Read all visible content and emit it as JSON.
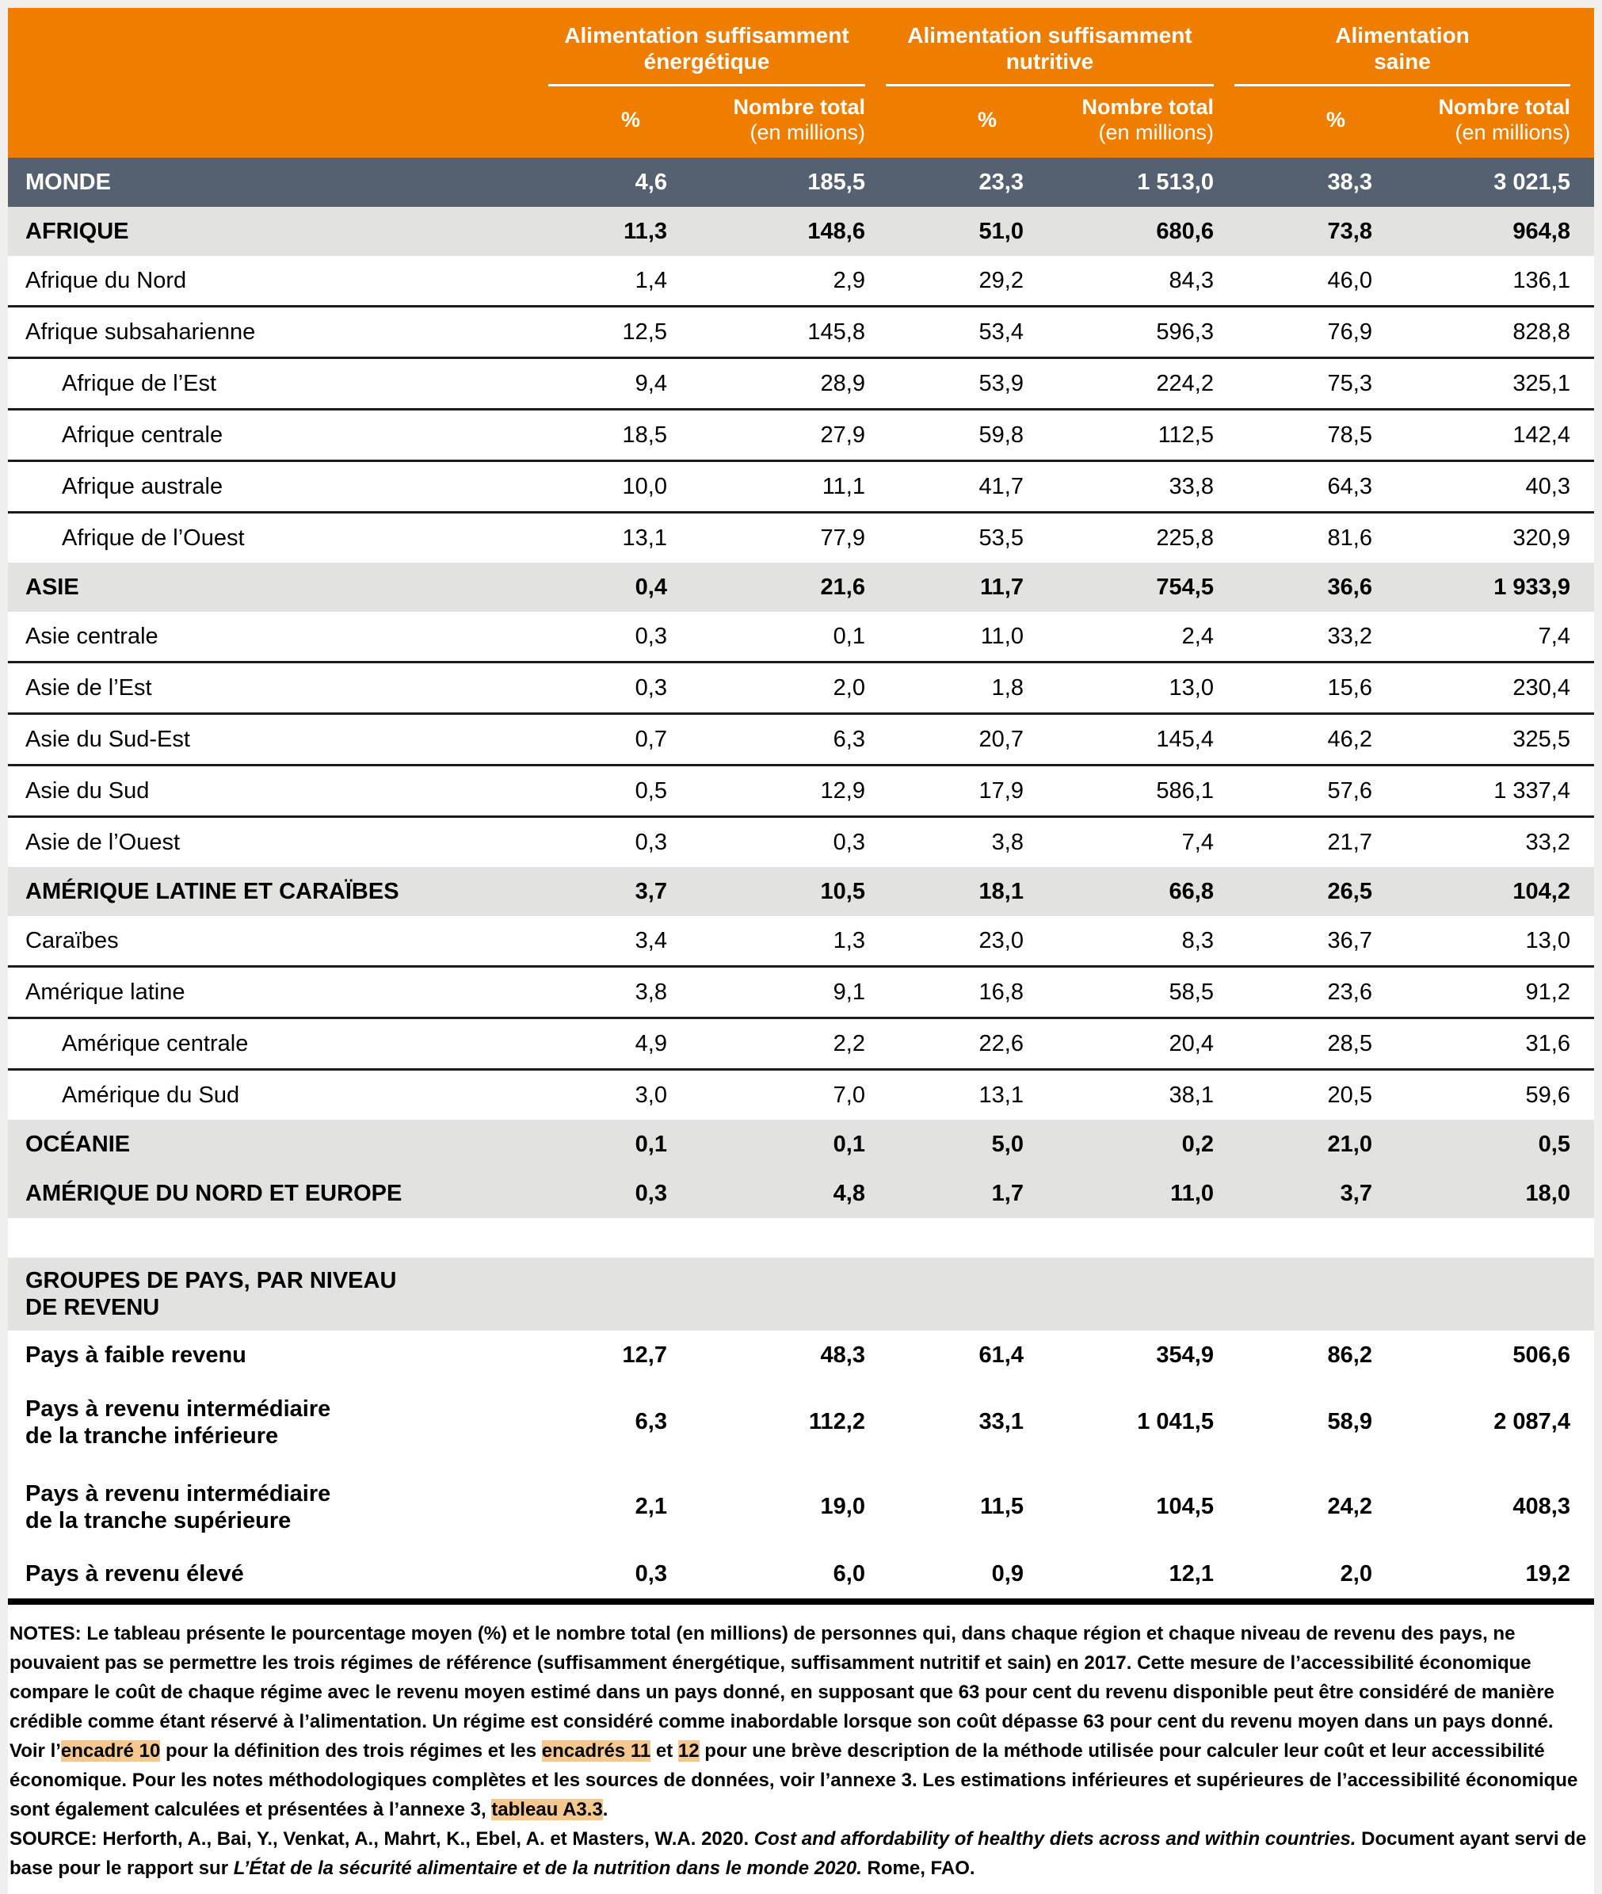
{
  "table": {
    "column_groups": [
      {
        "title": "Alimentation suffisamment\nénergétique"
      },
      {
        "title": "Alimentation suffisamment\nnutritive"
      },
      {
        "title": "Alimentation\nsaine"
      }
    ],
    "sub_headers": {
      "percent": "%",
      "total_line1": "Nombre total",
      "total_line2": "(en millions)"
    },
    "rows": [
      {
        "label": "MONDE",
        "style": "world",
        "indent": 0,
        "sep": false,
        "values": [
          "4,6",
          "185,5",
          "23,3",
          "1 513,0",
          "38,3",
          "3 021,5"
        ]
      },
      {
        "label": "AFRIQUE",
        "style": "region",
        "indent": 0,
        "sep": false,
        "values": [
          "11,3",
          "148,6",
          "51,0",
          "680,6",
          "73,8",
          "964,8"
        ]
      },
      {
        "label": "Afrique du Nord",
        "style": "data",
        "indent": 0,
        "sep": true,
        "values": [
          "1,4",
          "2,9",
          "29,2",
          "84,3",
          "46,0",
          "136,1"
        ]
      },
      {
        "label": "Afrique subsaharienne",
        "style": "data",
        "indent": 0,
        "sep": true,
        "values": [
          "12,5",
          "145,8",
          "53,4",
          "596,3",
          "76,9",
          "828,8"
        ]
      },
      {
        "label": "Afrique de l’Est",
        "style": "data",
        "indent": 1,
        "sep": true,
        "values": [
          "9,4",
          "28,9",
          "53,9",
          "224,2",
          "75,3",
          "325,1"
        ]
      },
      {
        "label": "Afrique centrale",
        "style": "data",
        "indent": 1,
        "sep": true,
        "values": [
          "18,5",
          "27,9",
          "59,8",
          "112,5",
          "78,5",
          "142,4"
        ]
      },
      {
        "label": "Afrique australe",
        "style": "data",
        "indent": 1,
        "sep": true,
        "values": [
          "10,0",
          "11,1",
          "41,7",
          "33,8",
          "64,3",
          "40,3"
        ]
      },
      {
        "label": "Afrique de l’Ouest",
        "style": "data",
        "indent": 1,
        "sep": false,
        "values": [
          "13,1",
          "77,9",
          "53,5",
          "225,8",
          "81,6",
          "320,9"
        ]
      },
      {
        "label": "ASIE",
        "style": "region",
        "indent": 0,
        "sep": false,
        "values": [
          "0,4",
          "21,6",
          "11,7",
          "754,5",
          "36,6",
          "1 933,9"
        ]
      },
      {
        "label": "Asie centrale",
        "style": "data",
        "indent": 0,
        "sep": true,
        "values": [
          "0,3",
          "0,1",
          "11,0",
          "2,4",
          "33,2",
          "7,4"
        ]
      },
      {
        "label": "Asie de l’Est",
        "style": "data",
        "indent": 0,
        "sep": true,
        "values": [
          "0,3",
          "2,0",
          "1,8",
          "13,0",
          "15,6",
          "230,4"
        ]
      },
      {
        "label": "Asie du Sud-Est",
        "style": "data",
        "indent": 0,
        "sep": true,
        "values": [
          "0,7",
          "6,3",
          "20,7",
          "145,4",
          "46,2",
          "325,5"
        ]
      },
      {
        "label": "Asie du Sud",
        "style": "data",
        "indent": 0,
        "sep": true,
        "values": [
          "0,5",
          "12,9",
          "17,9",
          "586,1",
          "57,6",
          "1 337,4"
        ]
      },
      {
        "label": "Asie de l’Ouest",
        "style": "data",
        "indent": 0,
        "sep": false,
        "values": [
          "0,3",
          "0,3",
          "3,8",
          "7,4",
          "21,7",
          "33,2"
        ]
      },
      {
        "label": "AMÉRIQUE LATINE ET CARAÏBES",
        "style": "region",
        "indent": 0,
        "sep": false,
        "values": [
          "3,7",
          "10,5",
          "18,1",
          "66,8",
          "26,5",
          "104,2"
        ]
      },
      {
        "label": "Caraïbes",
        "style": "data",
        "indent": 0,
        "sep": true,
        "values": [
          "3,4",
          "1,3",
          "23,0",
          "8,3",
          "36,7",
          "13,0"
        ]
      },
      {
        "label": "Amérique latine",
        "style": "data",
        "indent": 0,
        "sep": true,
        "values": [
          "3,8",
          "9,1",
          "16,8",
          "58,5",
          "23,6",
          "91,2"
        ]
      },
      {
        "label": "Amérique centrale",
        "style": "data",
        "indent": 1,
        "sep": true,
        "values": [
          "4,9",
          "2,2",
          "22,6",
          "20,4",
          "28,5",
          "31,6"
        ]
      },
      {
        "label": "Amérique du Sud",
        "style": "data",
        "indent": 1,
        "sep": false,
        "values": [
          "3,0",
          "7,0",
          "13,1",
          "38,1",
          "20,5",
          "59,6"
        ]
      },
      {
        "label": "OCÉANIE",
        "style": "region",
        "indent": 0,
        "sep": false,
        "values": [
          "0,1",
          "0,1",
          "5,0",
          "0,2",
          "21,0",
          "0,5"
        ]
      },
      {
        "label": "AMÉRIQUE DU NORD ET EUROPE",
        "style": "region",
        "indent": 0,
        "sep": false,
        "values": [
          "0,3",
          "4,8",
          "1,7",
          "11,0",
          "3,7",
          "18,0"
        ]
      },
      {
        "label": "GROUPES DE PAYS, PAR NIVEAU\nDE REVENU",
        "style": "section",
        "indent": 0,
        "sep": false,
        "values": null
      },
      {
        "label": "Pays à faible revenu",
        "style": "data bold",
        "indent": 0,
        "sep": false,
        "values": [
          "12,7",
          "48,3",
          "61,4",
          "354,9",
          "86,2",
          "506,6"
        ]
      },
      {
        "label": "Pays à revenu intermédiaire\nde la tranche inférieure",
        "style": "data bold tall",
        "indent": 0,
        "sep": false,
        "values": [
          "6,3",
          "112,2",
          "33,1",
          "1 041,5",
          "58,9",
          "2 087,4"
        ]
      },
      {
        "label": "Pays à revenu intermédiaire\nde la tranche supérieure",
        "style": "data bold tall",
        "indent": 0,
        "sep": false,
        "values": [
          "2,1",
          "19,0",
          "11,5",
          "104,5",
          "24,2",
          "408,3"
        ]
      },
      {
        "label": "Pays à revenu élevé",
        "style": "data bold",
        "indent": 0,
        "sep": false,
        "values": [
          "0,3",
          "6,0",
          "0,9",
          "12,1",
          "2,0",
          "19,2"
        ]
      }
    ]
  },
  "notes": {
    "segments": [
      {
        "text": "NOTES: Le tableau présente le pourcentage moyen (%) et le nombre total (en millions) de personnes qui, dans chaque région et chaque niveau de revenu des pays, ne pouvaient pas se permettre les trois régimes de référence (suffisamment énergétique, suffisamment nutritif et sain) en 2017. Cette mesure de l’accessibilité économique compare le coût de chaque régime avec le revenu moyen estimé dans un pays donné, en supposant que 63 pour cent du revenu disponible peut être considéré de manière crédible comme étant réservé à l’alimentation. Un régime est considéré comme inabordable lorsque son coût dépasse 63 pour cent du revenu moyen dans un pays donné. Voir l’",
        "hl": false
      },
      {
        "text": "encadré 10",
        "hl": true
      },
      {
        "text": " pour la définition des trois régimes et les ",
        "hl": false
      },
      {
        "text": "encadrés 11",
        "hl": true
      },
      {
        "text": " et ",
        "hl": false
      },
      {
        "text": "12",
        "hl": true
      },
      {
        "text": " pour une brève description de la méthode utilisée pour calculer leur coût et leur accessibilité économique. Pour les notes méthodologiques complètes et les sources de données, voir l’annexe 3. Les estimations inférieures et supérieures de l’accessibilité économique sont également calculées et présentées à l’annexe 3, ",
        "hl": false
      },
      {
        "text": "tableau A3.3",
        "hl": true
      },
      {
        "text": ".",
        "hl": false
      }
    ]
  },
  "source": {
    "segments": [
      {
        "text": "SOURCE: Herforth, A., Bai, Y., Venkat, A., Mahrt, K., Ebel, A. et Masters, W.A. 2020. ",
        "i": false
      },
      {
        "text": "Cost and affordability of healthy diets across and within countries.",
        "i": true
      },
      {
        "text": " Document ayant servi de base pour le rapport sur ",
        "i": false
      },
      {
        "text": "L’État de la sécurité alimentaire et de la nutrition dans le monde 2020.",
        "i": true
      },
      {
        "text": " Rome, FAO.",
        "i": false
      }
    ]
  },
  "colors": {
    "header_orange": "#ee7d00",
    "world_row": "#556170",
    "region_row": "#e2e2e0",
    "highlight": "#f6c78f",
    "page_bg": "#f0efed",
    "separator": "#1c1c1c"
  }
}
